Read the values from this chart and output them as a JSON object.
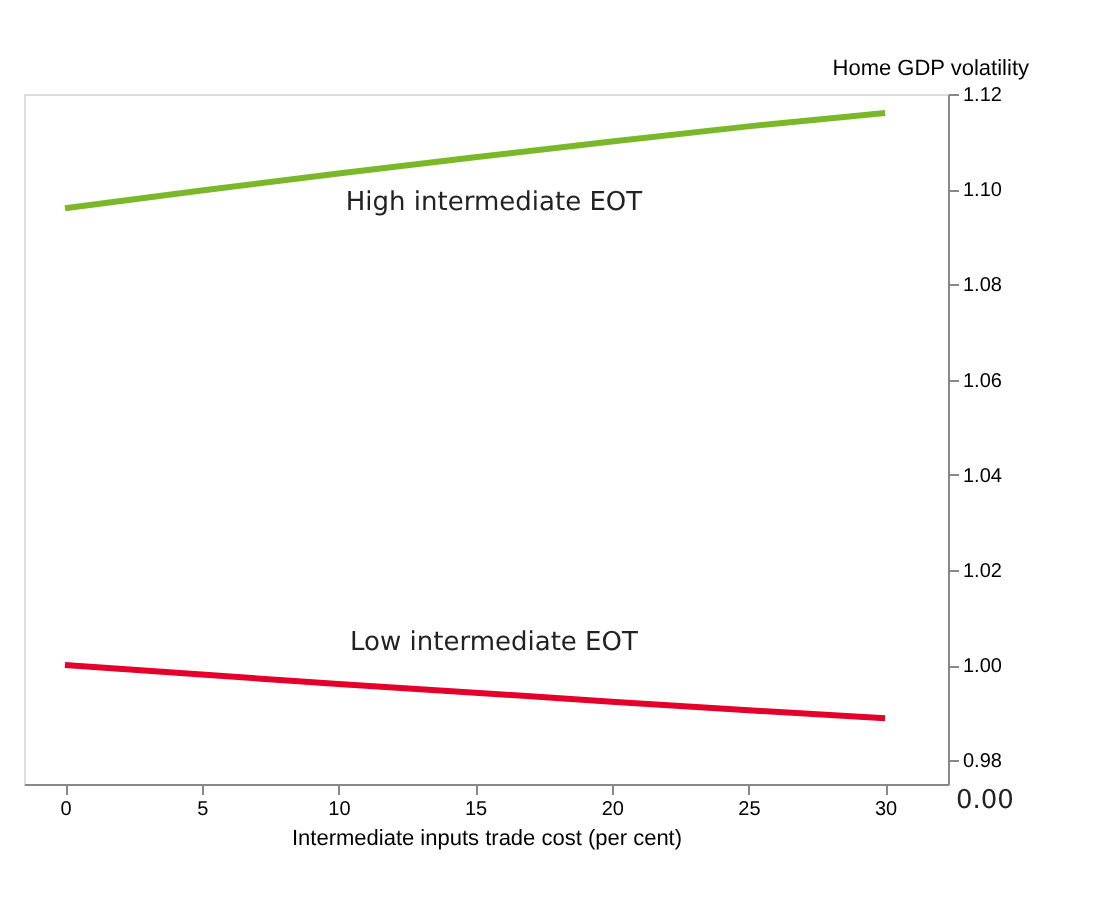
{
  "chart_data": {
    "type": "line",
    "xlabel": "Intermediate inputs trade cost (per cent)",
    "ylabel": "Home GDP volatility",
    "series": [
      {
        "color": "#7ab829",
        "x": [
          0,
          5,
          10,
          15,
          20,
          25,
          30
        ],
        "values": [
          1.096,
          1.0997,
          1.1033,
          1.1067,
          1.11,
          1.1132,
          1.116
        ]
      },
      {
        "color": "#e4002b",
        "x": [
          0,
          5,
          10,
          15,
          20,
          25,
          30
        ],
        "values": [
          1.0,
          0.998,
          0.996,
          0.9942,
          0.9923,
          0.9905,
          0.9888
        ]
      }
    ],
    "annotations": [
      "High intermediate EOT",
      "Low intermediate EOT",
      "0.00"
    ],
    "xlim": [
      -1.5,
      32.3
    ],
    "xticks": [
      0,
      5,
      10,
      15,
      20,
      25,
      30
    ],
    "ylim": [
      0.975,
      1.12
    ],
    "yticks": [
      0.98,
      {
        "value": 1.0,
        "label": "1.00"
      },
      1.02,
      1.04,
      1.06,
      1.08,
      {
        "value": 1.1,
        "label": "1.10"
      },
      1.12
    ],
    "grid": false,
    "marker": "none",
    "line_style": "solid"
  }
}
